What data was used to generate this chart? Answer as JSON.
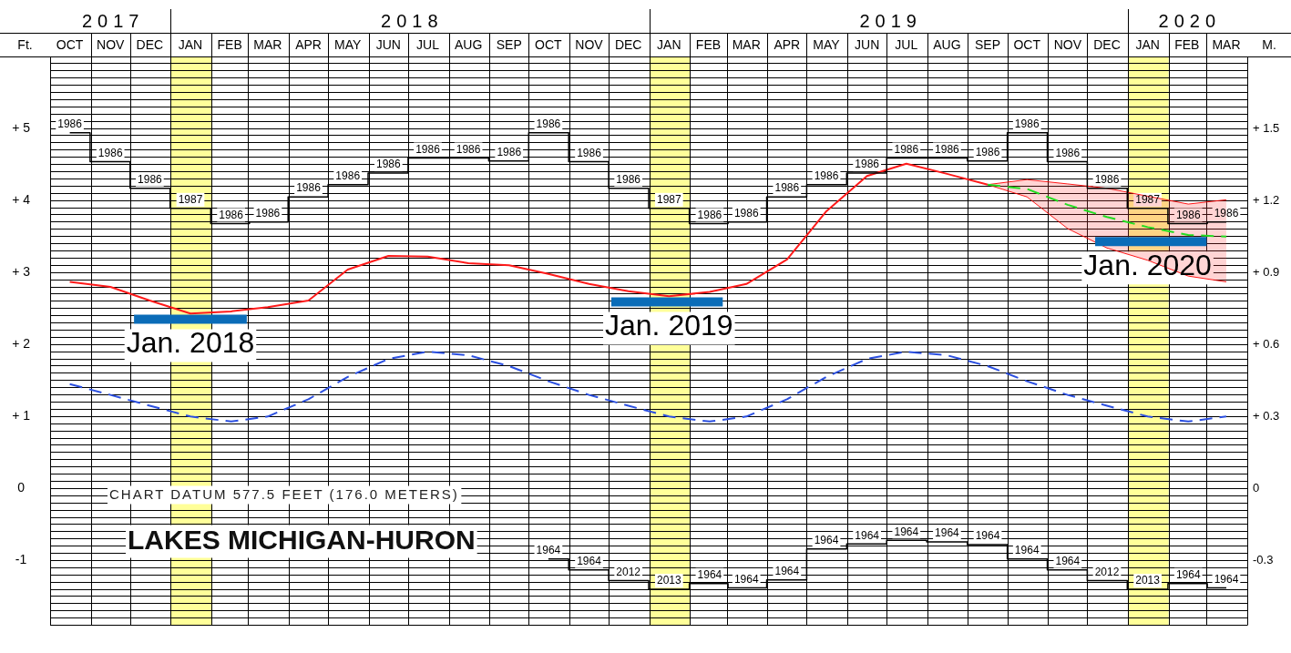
{
  "chart_data": {
    "type": "line",
    "title": "LAKES MICHIGAN-HURON",
    "ylabel": "Ft.",
    "y2label": "M.",
    "annotations": [
      "CHART DATUM 577.5 FEET (176.0 METERS)",
      {
        "text": "Jan. 2018",
        "x": "2018-01-16",
        "y": 2.35
      },
      {
        "text": "Jan. 2019",
        "x": "2019-01-16",
        "y": 2.59
      },
      {
        "text": "Jan. 2020",
        "x": "2020-01-16",
        "y": 3.43
      },
      {
        "text": "1986",
        "x": "2017-10-16",
        "y": 4.94
      },
      {
        "text": "1986",
        "x": "2017-11-16",
        "y": 4.54
      },
      {
        "text": "1986",
        "x": "2017-12-16",
        "y": 4.17
      },
      {
        "text": "1987",
        "x": "2018-01-16",
        "y": 3.89
      },
      {
        "text": "1986",
        "x": "2018-02-16",
        "y": 3.68
      },
      {
        "text": "1986",
        "x": "2018-03-16",
        "y": 3.7
      },
      {
        "text": "1986",
        "x": "2018-04-16",
        "y": 4.05
      },
      {
        "text": "1986",
        "x": "2018-05-16",
        "y": 4.22
      },
      {
        "text": "1986",
        "x": "2018-06-16",
        "y": 4.38
      },
      {
        "text": "1986",
        "x": "2018-07-16",
        "y": 4.59
      },
      {
        "text": "1986",
        "x": "2018-08-16",
        "y": 4.59
      },
      {
        "text": "1986",
        "x": "2018-09-16",
        "y": 4.55
      },
      {
        "text": "1986",
        "x": "2018-10-16",
        "y": 4.94
      },
      {
        "text": "1986",
        "x": "2018-11-16",
        "y": 4.54
      },
      {
        "text": "1986",
        "x": "2018-12-16",
        "y": 4.17
      },
      {
        "text": "1987",
        "x": "2019-01-16",
        "y": 3.89
      },
      {
        "text": "1986",
        "x": "2019-02-16",
        "y": 3.68
      },
      {
        "text": "1986",
        "x": "2019-03-16",
        "y": 3.7
      },
      {
        "text": "1986",
        "x": "2019-04-16",
        "y": 4.05
      },
      {
        "text": "1986",
        "x": "2019-05-16",
        "y": 4.22
      },
      {
        "text": "1986",
        "x": "2019-06-16",
        "y": 4.38
      },
      {
        "text": "1986",
        "x": "2019-07-16",
        "y": 4.59
      },
      {
        "text": "1986",
        "x": "2019-08-16",
        "y": 4.59
      },
      {
        "text": "1986",
        "x": "2019-09-16",
        "y": 4.55
      },
      {
        "text": "1986",
        "x": "2019-10-16",
        "y": 4.94
      },
      {
        "text": "1986",
        "x": "2019-11-16",
        "y": 4.54
      },
      {
        "text": "1986",
        "x": "2019-12-16",
        "y": 4.17
      },
      {
        "text": "1987",
        "x": "2020-01-16",
        "y": 3.89
      },
      {
        "text": "1986",
        "x": "2020-02-16",
        "y": 3.68
      },
      {
        "text": "1986",
        "x": "2020-03-16",
        "y": 3.7
      },
      {
        "text": "1964",
        "x": "2018-10-16",
        "y": -0.98
      },
      {
        "text": "1964",
        "x": "2018-11-16",
        "y": -1.13
      },
      {
        "text": "2012",
        "x": "2018-12-16",
        "y": -1.28
      },
      {
        "text": "2013",
        "x": "2019-01-16",
        "y": -1.4
      },
      {
        "text": "1964",
        "x": "2019-02-16",
        "y": -1.32
      },
      {
        "text": "1964",
        "x": "2019-03-16",
        "y": -1.38
      },
      {
        "text": "1964",
        "x": "2019-04-16",
        "y": -1.27
      },
      {
        "text": "1964",
        "x": "2019-05-16",
        "y": -0.84
      },
      {
        "text": "1964",
        "x": "2019-06-16",
        "y": -0.77
      },
      {
        "text": "1964",
        "x": "2019-07-16",
        "y": -0.72
      },
      {
        "text": "1964",
        "x": "2019-08-16",
        "y": -0.74
      },
      {
        "text": "1964",
        "x": "2019-09-16",
        "y": -0.78
      },
      {
        "text": "1964",
        "x": "2019-10-16",
        "y": -0.98
      },
      {
        "text": "1964",
        "x": "2019-11-16",
        "y": -1.13
      },
      {
        "text": "2012",
        "x": "2019-12-16",
        "y": -1.28
      },
      {
        "text": "2013",
        "x": "2020-01-16",
        "y": -1.4
      },
      {
        "text": "1964",
        "x": "2020-02-16",
        "y": -1.32
      },
      {
        "text": "1964",
        "x": "2020-03-16",
        "y": -1.38
      }
    ],
    "x": [
      "2017-10-16",
      "2017-11-16",
      "2017-12-16",
      "2018-01-16",
      "2018-02-16",
      "2018-03-16",
      "2018-04-16",
      "2018-05-16",
      "2018-06-16",
      "2018-07-16",
      "2018-08-16",
      "2018-09-16",
      "2018-10-16",
      "2018-11-16",
      "2018-12-16",
      "2019-01-16",
      "2019-02-16",
      "2019-03-16",
      "2019-04-16",
      "2019-05-16",
      "2019-06-16",
      "2019-07-16",
      "2019-08-16",
      "2019-09-16",
      "2019-10-16",
      "2019-11-16",
      "2019-12-16",
      "2020-01-16",
      "2020-02-16",
      "2020-03-16"
    ],
    "xlim": [
      "2017-10-01",
      "2020-04-01"
    ],
    "xticks": [
      {
        "value": "2017-10-16",
        "label": "OCT"
      },
      {
        "value": "2017-11-01",
        "label": null
      },
      {
        "value": "2017-11-16",
        "label": "NOV"
      },
      {
        "value": "2017-12-01",
        "label": null
      },
      {
        "value": "2017-12-16",
        "label": "DEC"
      },
      {
        "value": "2018-01-01",
        "label": null
      },
      {
        "value": "2018-01-16",
        "label": "JAN"
      },
      {
        "value": "2018-02-01",
        "label": null
      },
      {
        "value": "2018-02-15",
        "label": "FEB"
      },
      {
        "value": "2018-03-01",
        "label": null
      },
      {
        "value": "2018-03-16",
        "label": "MAR"
      },
      {
        "value": "2018-04-01",
        "label": null
      },
      {
        "value": "2018-04-16",
        "label": "APR"
      },
      {
        "value": "2018-05-01",
        "label": null
      },
      {
        "value": "2018-05-16",
        "label": "MAY"
      },
      {
        "value": "2018-06-01",
        "label": null
      },
      {
        "value": "2018-06-16",
        "label": "JUN"
      },
      {
        "value": "2018-07-01",
        "label": null
      },
      {
        "value": "2018-07-16",
        "label": "JUL"
      },
      {
        "value": "2018-08-01",
        "label": null
      },
      {
        "value": "2018-08-16",
        "label": "AUG"
      },
      {
        "value": "2018-09-01",
        "label": null
      },
      {
        "value": "2018-09-16",
        "label": "SEP"
      },
      {
        "value": "2018-10-01",
        "label": null
      },
      {
        "value": "2018-10-16",
        "label": "OCT"
      },
      {
        "value": "2018-11-01",
        "label": null
      },
      {
        "value": "2018-11-16",
        "label": "NOV"
      },
      {
        "value": "2018-12-01",
        "label": null
      },
      {
        "value": "2018-12-16",
        "label": "DEC"
      },
      {
        "value": "2019-01-01",
        "label": null
      },
      {
        "value": "2019-01-16",
        "label": "JAN"
      },
      {
        "value": "2019-02-01",
        "label": null
      },
      {
        "value": "2019-02-15",
        "label": "FEB"
      },
      {
        "value": "2019-03-01",
        "label": null
      },
      {
        "value": "2019-03-16",
        "label": "MAR"
      },
      {
        "value": "2019-04-01",
        "label": null
      },
      {
        "value": "2019-04-16",
        "label": "APR"
      },
      {
        "value": "2019-05-01",
        "label": null
      },
      {
        "value": "2019-05-16",
        "label": "MAY"
      },
      {
        "value": "2019-06-01",
        "label": null
      },
      {
        "value": "2019-06-16",
        "label": "JUN"
      },
      {
        "value": "2019-07-01",
        "label": null
      },
      {
        "value": "2019-07-16",
        "label": "JUL"
      },
      {
        "value": "2019-08-01",
        "label": null
      },
      {
        "value": "2019-08-16",
        "label": "AUG"
      },
      {
        "value": "2019-09-01",
        "label": null
      },
      {
        "value": "2019-09-16",
        "label": "SEP"
      },
      {
        "value": "2019-10-01",
        "label": null
      },
      {
        "value": "2019-10-16",
        "label": "OCT"
      },
      {
        "value": "2019-11-01",
        "label": null
      },
      {
        "value": "2019-11-16",
        "label": "NOV"
      },
      {
        "value": "2019-12-01",
        "label": null
      },
      {
        "value": "2019-12-16",
        "label": "DEC"
      },
      {
        "value": "2020-01-01",
        "label": null
      },
      {
        "value": "2020-01-16",
        "label": "JAN"
      },
      {
        "value": "2020-02-01",
        "label": null
      },
      {
        "value": "2020-02-15",
        "label": "FEB"
      },
      {
        "value": "2020-03-01",
        "label": null
      },
      {
        "value": "2020-03-16",
        "label": "MAR"
      }
    ],
    "x2lim": [
      "2017-10-01",
      "2020-04-01"
    ],
    "x2ticks": [
      {
        "value": "2017-11-16",
        "label": "2017"
      },
      {
        "value": "2018-01-01",
        "label": null
      },
      {
        "value": "2018-07-02",
        "label": "2018"
      },
      {
        "value": "2019-01-01",
        "label": null
      },
      {
        "value": "2019-07-02",
        "label": "2019"
      },
      {
        "value": "2020-01-01",
        "label": null
      },
      {
        "value": "2020-02-15",
        "label": "2020"
      }
    ],
    "ylim": [
      -1.9,
      6
    ],
    "yticks": [
      {
        "value": -1.9,
        "label": null
      },
      {
        "value": -1.8,
        "label": null
      },
      {
        "value": -1.7,
        "label": null
      },
      {
        "value": -1.6,
        "label": null
      },
      {
        "value": -1.5,
        "label": null
      },
      {
        "value": -1.4,
        "label": null
      },
      {
        "value": -1.3,
        "label": null
      },
      {
        "value": -1.2,
        "label": null
      },
      {
        "value": -1.1,
        "label": null
      },
      -1,
      {
        "value": -0.9,
        "label": null
      },
      {
        "value": -0.8,
        "label": null
      },
      {
        "value": -0.7,
        "label": null
      },
      {
        "value": -0.6,
        "label": null
      },
      {
        "value": -0.5,
        "label": null
      },
      {
        "value": -0.4,
        "label": null
      },
      {
        "value": -0.3,
        "label": null
      },
      {
        "value": -0.2,
        "label": null
      },
      {
        "value": -0.1,
        "label": null
      },
      0,
      {
        "value": 0.1,
        "label": null
      },
      {
        "value": 0.2,
        "label": null
      },
      {
        "value": 0.3,
        "label": null
      },
      {
        "value": 0.4,
        "label": null
      },
      {
        "value": 0.5,
        "label": null
      },
      {
        "value": 0.6,
        "label": null
      },
      {
        "value": 0.7,
        "label": null
      },
      {
        "value": 0.8,
        "label": null
      },
      {
        "value": 0.9,
        "label": null
      },
      {
        "value": 1,
        "label": "+ 1"
      },
      {
        "value": 1.1,
        "label": null
      },
      {
        "value": 1.2,
        "label": null
      },
      {
        "value": 1.3,
        "label": null
      },
      {
        "value": 1.4,
        "label": null
      },
      {
        "value": 1.5,
        "label": null
      },
      {
        "value": 1.6,
        "label": null
      },
      {
        "value": 1.7,
        "label": null
      },
      {
        "value": 1.8,
        "label": null
      },
      {
        "value": 1.9,
        "label": null
      },
      {
        "value": 2,
        "label": "+ 2"
      },
      {
        "value": 2.1,
        "label": null
      },
      {
        "value": 2.2,
        "label": null
      },
      {
        "value": 2.3,
        "label": null
      },
      {
        "value": 2.4,
        "label": null
      },
      {
        "value": 2.5,
        "label": null
      },
      {
        "value": 2.6,
        "label": null
      },
      {
        "value": 2.7,
        "label": null
      },
      {
        "value": 2.8,
        "label": null
      },
      {
        "value": 2.9,
        "label": null
      },
      {
        "value": 3,
        "label": "+ 3"
      },
      {
        "value": 3.1,
        "label": null
      },
      {
        "value": 3.2,
        "label": null
      },
      {
        "value": 3.3,
        "label": null
      },
      {
        "value": 3.4,
        "label": null
      },
      {
        "value": 3.5,
        "label": null
      },
      {
        "value": 3.6,
        "label": null
      },
      {
        "value": 3.7,
        "label": null
      },
      {
        "value": 3.8,
        "label": null
      },
      {
        "value": 3.9,
        "label": null
      },
      {
        "value": 4,
        "label": "+ 4"
      },
      {
        "value": 4.1,
        "label": null
      },
      {
        "value": 4.2,
        "label": null
      },
      {
        "value": 4.3,
        "label": null
      },
      {
        "value": 4.4,
        "label": null
      },
      {
        "value": 4.5,
        "label": null
      },
      {
        "value": 4.6,
        "label": null
      },
      {
        "value": 4.7,
        "label": null
      },
      {
        "value": 4.8,
        "label": null
      },
      {
        "value": 4.9,
        "label": null
      },
      {
        "value": 5,
        "label": "+ 5"
      },
      {
        "value": 5.1,
        "label": null
      },
      {
        "value": 5.2,
        "label": null
      },
      {
        "value": 5.3,
        "label": null
      },
      {
        "value": 5.4,
        "label": null
      },
      {
        "value": 5.5,
        "label": null
      },
      {
        "value": 5.6,
        "label": null
      },
      {
        "value": 5.7,
        "label": null
      },
      {
        "value": 5.8,
        "label": null
      },
      {
        "value": 5.9,
        "label": null
      },
      {
        "value": 6,
        "label": null
      }
    ],
    "y2lim": [
      -0.57,
      1.8
    ],
    "y2ticks": [
      {
        "value": -0.3,
        "label": "-0.3"
      },
      0,
      {
        "value": 0.3,
        "label": "+ 0.3"
      },
      {
        "value": 0.6,
        "label": "+ 0.6"
      },
      {
        "value": 0.9,
        "label": "+ 0.9"
      },
      {
        "value": 1.2,
        "label": "+ 1.2"
      },
      {
        "value": 1.5,
        "label": "+ 1.5"
      }
    ],
    "grid": true,
    "legend": false,
    "marker": "none",
    "bands": [
      {
        "axis": "x",
        "from": "2018-01-01",
        "to": "2018-02-01",
        "color": "#ffff99"
      },
      {
        "axis": "x",
        "from": "2019-01-01",
        "to": "2019-02-01",
        "color": "#ffff99"
      },
      {
        "axis": "x",
        "from": "2020-01-01",
        "to": "2020-02-01",
        "color": "#ffff99"
      }
    ],
    "series": [
      {
        "type": "step",
        "color": "#000000",
        "values": [
          4.94,
          4.54,
          4.17,
          3.89,
          3.68,
          3.7,
          4.05,
          4.22,
          4.38,
          4.59,
          4.59,
          4.55,
          4.94,
          4.54,
          4.17,
          3.89,
          3.68,
          3.7,
          4.05,
          4.22,
          4.38,
          4.59,
          4.59,
          4.55,
          4.94,
          4.54,
          4.17,
          3.89,
          3.68,
          3.7
        ]
      },
      {
        "type": "step",
        "color": "#000000",
        "values": [
          null,
          null,
          null,
          null,
          null,
          null,
          null,
          null,
          null,
          null,
          null,
          null,
          -0.98,
          -1.13,
          -1.28,
          -1.4,
          -1.32,
          -1.38,
          -1.27,
          -0.84,
          -0.77,
          -0.72,
          -0.74,
          -0.78,
          -0.98,
          -1.13,
          -1.28,
          -1.4,
          -1.32,
          -1.38
        ]
      },
      {
        "color": "#2b4fe0",
        "line_style": "dashed",
        "values": [
          1.45,
          1.3,
          1.15,
          1.0,
          0.93,
          1.0,
          1.24,
          1.55,
          1.8,
          1.9,
          1.85,
          1.7,
          1.49,
          1.3,
          1.15,
          1.0,
          0.93,
          1.0,
          1.24,
          1.55,
          1.8,
          1.9,
          1.85,
          1.7,
          1.49,
          1.3,
          1.15,
          1.0,
          0.93,
          1.0
        ]
      },
      {
        "color": "#ff1a1a",
        "values": [
          2.87,
          2.8,
          2.61,
          2.43,
          2.46,
          2.52,
          2.61,
          3.04,
          3.23,
          3.22,
          3.13,
          3.1,
          2.98,
          2.84,
          2.74,
          2.67,
          2.73,
          2.84,
          3.18,
          3.85,
          4.34,
          4.51,
          4.37,
          4.22,
          null,
          null,
          null,
          null,
          null,
          null
        ]
      },
      {
        "color": "#22dd22",
        "line_style": "dashed",
        "x": [
          "2019-09-16",
          "2019-10-16",
          "2019-11-16",
          "2019-12-16",
          "2020-01-16",
          "2020-02-16",
          "2020-03-16"
        ],
        "values": [
          4.22,
          4.16,
          3.94,
          3.77,
          3.63,
          3.52,
          3.5
        ],
        "lower": [
          4.22,
          4.05,
          3.61,
          3.34,
          3.17,
          2.95,
          2.87
        ],
        "upper": [
          4.22,
          4.29,
          4.23,
          4.17,
          4.06,
          3.95,
          4.01
        ]
      },
      {
        "color": "#0a6cb8",
        "x": [
          "2017-12-04",
          "2018-02-28"
        ],
        "values": [
          2.35,
          2.35
        ]
      },
      {
        "color": "#0a6cb8",
        "x": [
          "2018-12-03",
          "2019-02-26"
        ],
        "values": [
          2.59,
          2.59
        ]
      },
      {
        "color": "#0a6cb8",
        "x": [
          "2019-12-07",
          "2020-03-01"
        ],
        "values": [
          3.43,
          3.43
        ]
      }
    ]
  }
}
